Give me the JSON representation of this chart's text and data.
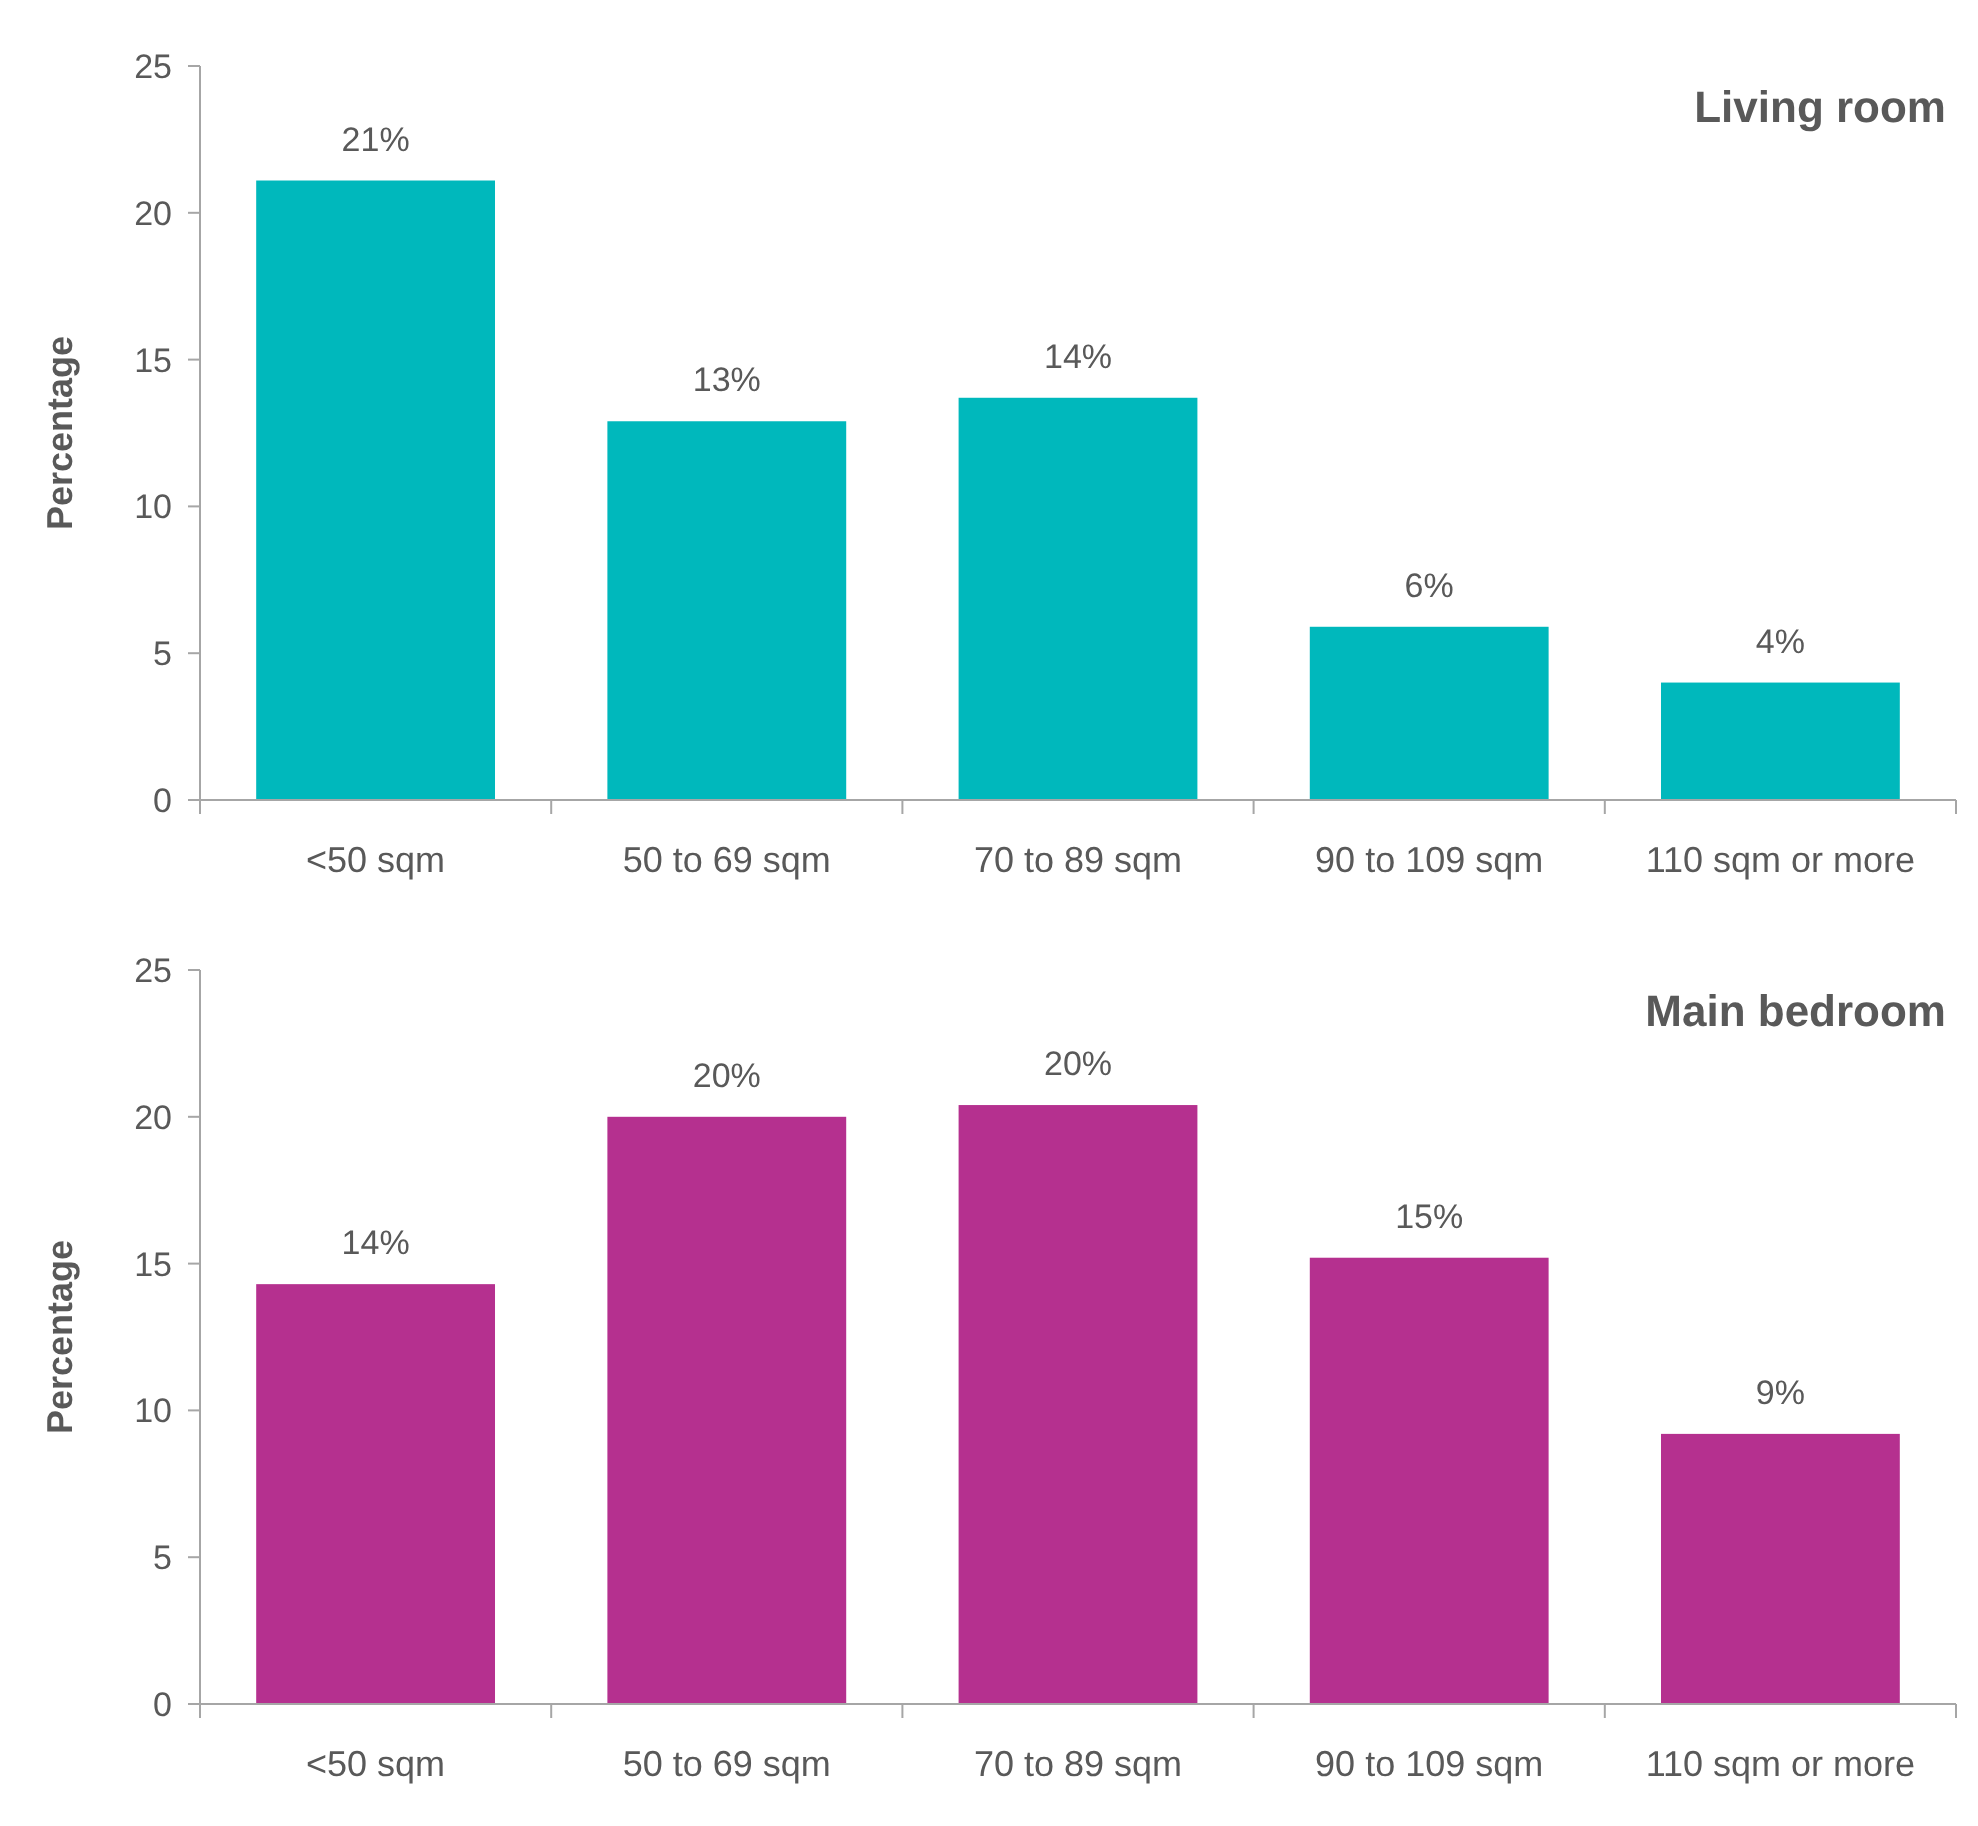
{
  "chart_data": [
    {
      "type": "bar",
      "title": "Living room",
      "ylabel": "Percentage",
      "categories": [
        "<50 sqm",
        "50 to 69 sqm",
        "70 to 89 sqm",
        "90 to 109 sqm",
        "110 sqm or more"
      ],
      "values": [
        21.1,
        12.9,
        13.7,
        5.9,
        4.0
      ],
      "value_labels": [
        "21%",
        "13%",
        "14%",
        "6%",
        "4%"
      ],
      "color": "#00b8bc",
      "ylim": [
        0,
        25
      ],
      "yticks": [
        0,
        5,
        10,
        15,
        20,
        25
      ]
    },
    {
      "type": "bar",
      "title": "Main bedroom",
      "ylabel": "Percentage",
      "categories": [
        "<50 sqm",
        "50 to 69 sqm",
        "70 to 89 sqm",
        "90 to 109 sqm",
        "110 sqm or more"
      ],
      "values": [
        14.3,
        20.0,
        20.4,
        15.2,
        9.2
      ],
      "value_labels": [
        "14%",
        "20%",
        "20%",
        "15%",
        "9%"
      ],
      "color": "#b5308f",
      "ylim": [
        0,
        25
      ],
      "yticks": [
        0,
        5,
        10,
        15,
        20,
        25
      ]
    }
  ]
}
